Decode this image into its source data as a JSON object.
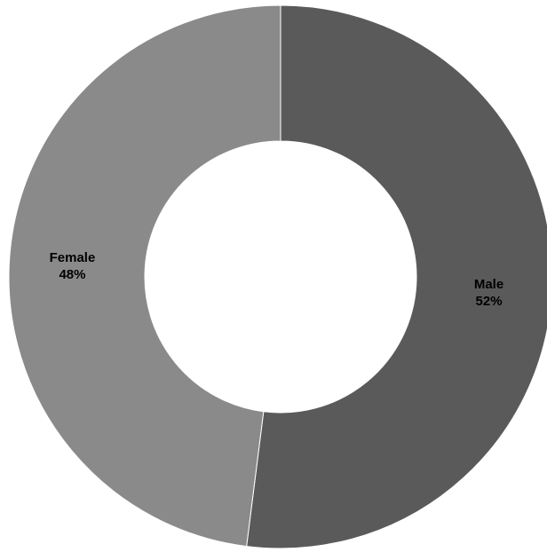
{
  "chart_data": {
    "type": "pie",
    "donut": true,
    "title": "",
    "categories": [
      "Male",
      "Female"
    ],
    "values": [
      52,
      48
    ],
    "data_labels": [
      "52%",
      "48%"
    ],
    "start_angle_deg": 0,
    "direction": "clockwise",
    "colors": [
      "#5a5a5a",
      "#8a8a8a"
    ],
    "legend": "none",
    "border_color": "#ffffff"
  }
}
